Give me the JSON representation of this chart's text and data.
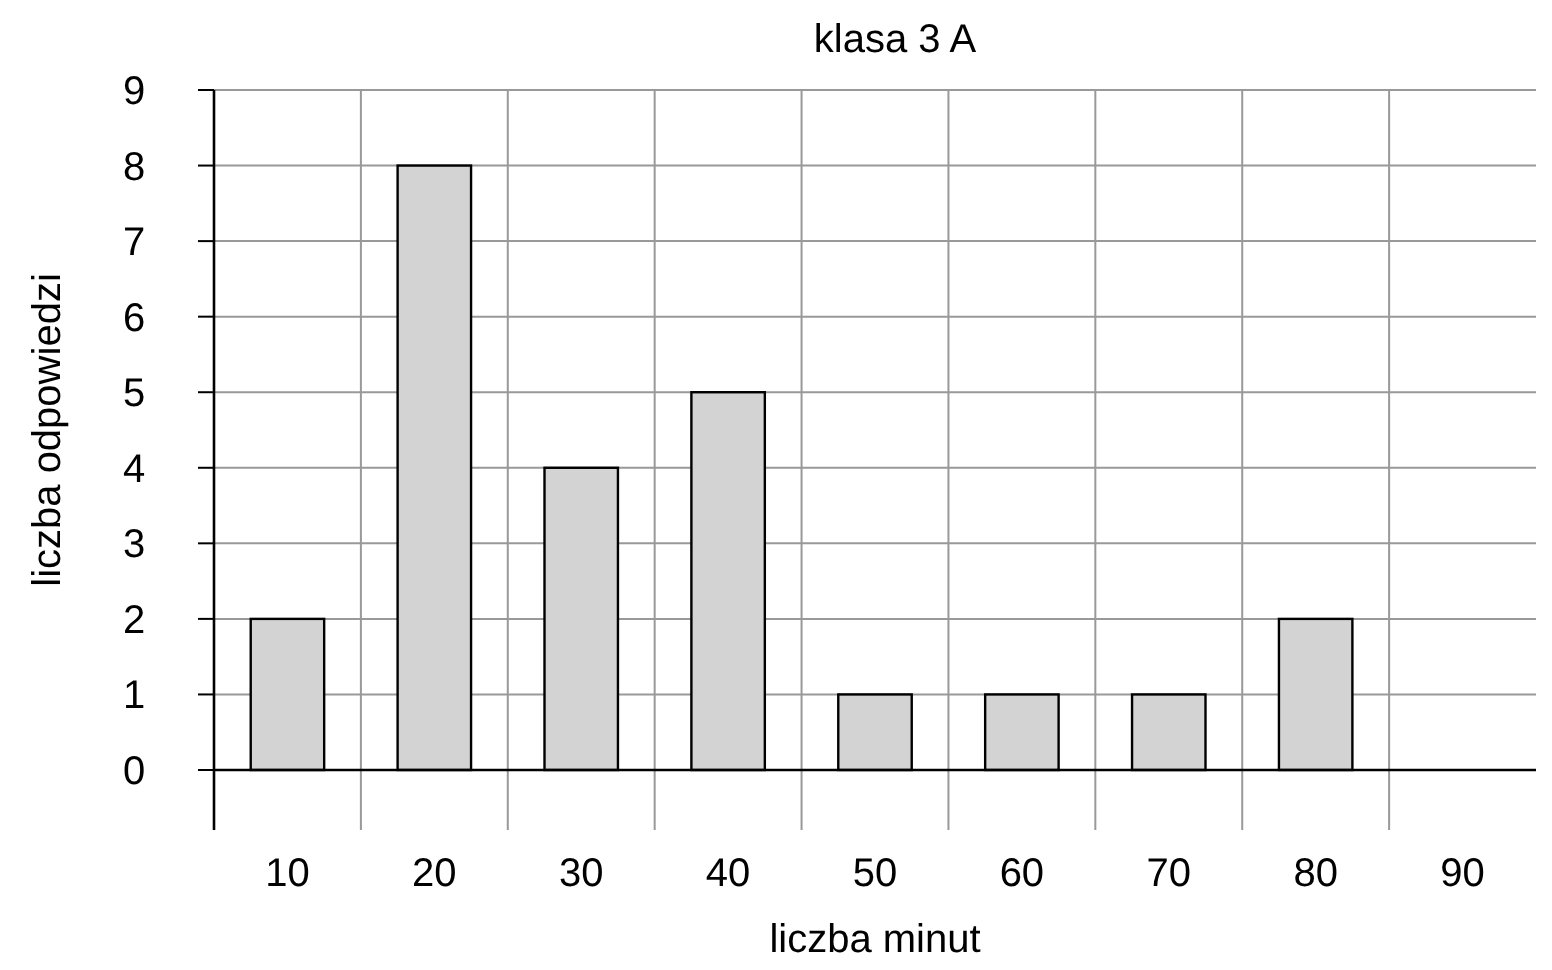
{
  "chart_data": {
    "type": "bar",
    "title": "klasa 3 A",
    "xlabel": "liczba minut",
    "ylabel": "liczba odpowiedzi",
    "categories": [
      "10",
      "20",
      "30",
      "40",
      "50",
      "60",
      "70",
      "80",
      "90"
    ],
    "values": [
      2,
      8,
      4,
      5,
      1,
      1,
      1,
      2,
      0
    ],
    "color": "#d3d3d3",
    "ylim": [
      0,
      9
    ],
    "yticks": [
      0,
      1,
      2,
      3,
      4,
      5,
      6,
      7,
      8,
      9
    ],
    "grid": true
  }
}
